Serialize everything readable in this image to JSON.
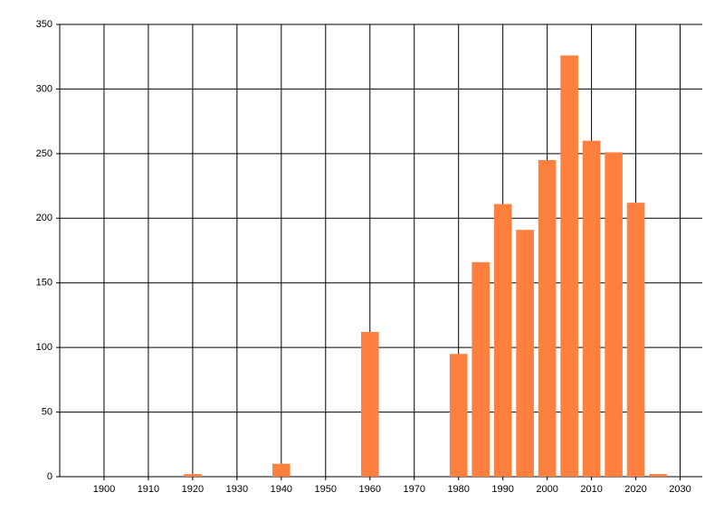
{
  "chart_data": {
    "type": "bar",
    "x": [
      1920,
      1940,
      1960,
      1980,
      1985,
      1990,
      1995,
      2000,
      2005,
      2010,
      2015,
      2020,
      2025
    ],
    "values": [
      2,
      10,
      112,
      95,
      166,
      211,
      191,
      245,
      326,
      260,
      251,
      212,
      2
    ],
    "color": "#ff7f3f",
    "xlim": [
      1890,
      2035
    ],
    "xticks": [
      1900,
      1910,
      1920,
      1930,
      1940,
      1950,
      1960,
      1970,
      1980,
      1990,
      2000,
      2010,
      2020,
      2030
    ],
    "ylim": [
      0,
      350
    ],
    "yticks": [
      0,
      50,
      100,
      150,
      200,
      250,
      300,
      350
    ],
    "grid": true
  }
}
